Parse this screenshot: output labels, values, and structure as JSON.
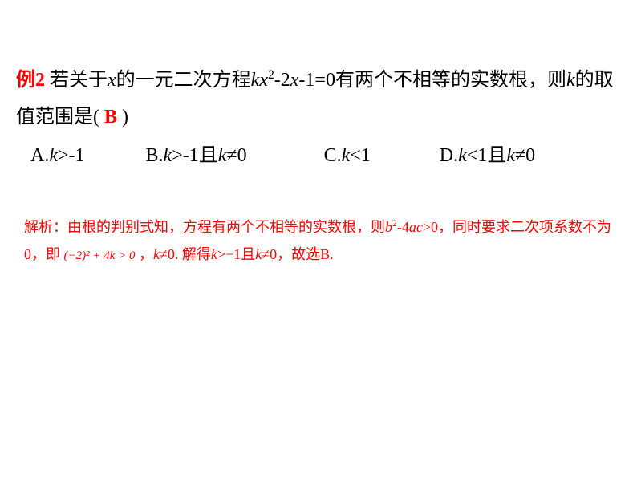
{
  "exampleLabel": "例2",
  "question": {
    "part1_pre": "若关于",
    "var_x1": "x",
    "part1_mid": "的一元二次方程",
    "eq_k": "k",
    "eq_x": "x",
    "eq_sup": "2",
    "eq_mid": "-2",
    "eq_x2": "x",
    "eq_end": "-1=0有两个不相等的",
    "line2_pre": "实数根，则",
    "var_k": "k",
    "line2_mid": "的取值范围是(",
    "answer": "B",
    "line2_end": ")"
  },
  "options": {
    "a_label": "A.",
    "a_k": "k",
    "a_text": ">-1",
    "b_label": "B.",
    "b_k": "k",
    "b_text1": ">-1",
    "b_and": "且",
    "b_k2": "k",
    "b_text2": "≠0",
    "c_label": "C.",
    "c_k": "k",
    "c_text": "<1",
    "d_label": "D.",
    "d_k": "k",
    "d_text1": "<1",
    "d_and": "且",
    "d_k2": "k",
    "d_text2": "≠0"
  },
  "explanation": {
    "pre": "解析：由根的判别式知，方程有两个不相等的实数根，则",
    "b": "b",
    "sup2": "2",
    "mid1": "-4",
    "a": "a",
    "c": "c",
    "mid2": ">0，同时要求二次项系数不为0，即 ",
    "formula": "(−2)² + 4k > 0",
    "mid3": " ，",
    "k1": "k",
    "mid4": "≠0. 解得",
    "k2": "k",
    "mid5": ">−1且",
    "k3": "k",
    "mid6": "≠0，故选B."
  }
}
